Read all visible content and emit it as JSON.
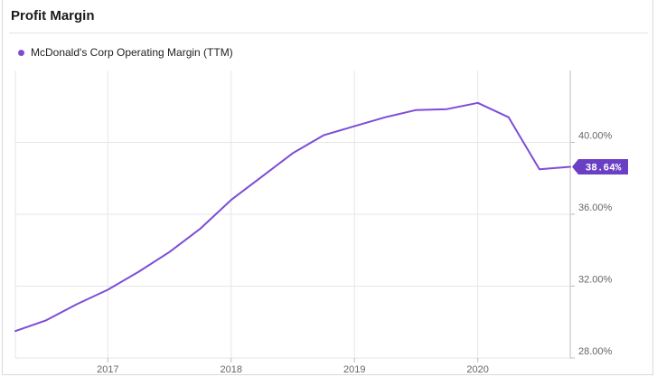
{
  "header": {
    "title": "Profit Margin"
  },
  "chart_data": {
    "type": "line",
    "title": "Profit Margin",
    "series": [
      {
        "name": "McDonald's Corp Operating Margin (TTM)",
        "x": [
          2016.25,
          2016.5,
          2016.75,
          2017.0,
          2017.25,
          2017.5,
          2017.75,
          2018.0,
          2018.25,
          2018.5,
          2018.75,
          2019.0,
          2019.25,
          2019.5,
          2019.75,
          2020.0,
          2020.25,
          2020.5,
          2020.75
        ],
        "values": [
          29.5,
          30.1,
          31.0,
          31.8,
          32.8,
          33.9,
          35.2,
          36.8,
          38.1,
          39.4,
          40.4,
          40.9,
          41.4,
          41.8,
          41.85,
          42.2,
          41.4,
          38.5,
          38.64
        ]
      }
    ],
    "current_value_label": "38.64%",
    "x_ticks": [
      "2017",
      "2018",
      "2019",
      "2020"
    ],
    "y_ticks": [
      "40.00%",
      "36.00%",
      "32.00%",
      "28.00%"
    ],
    "y_tick_values": [
      40,
      36,
      32,
      28
    ],
    "x_tick_values": [
      2017,
      2018,
      2019,
      2020
    ],
    "xlim": [
      2016.25,
      2020.75
    ],
    "ylim": [
      28,
      44
    ],
    "grid": true,
    "legend": "top-left",
    "colors": {
      "line": "#7d4dd6",
      "marker": "#6a3fc4",
      "grid": "#e6e6e6",
      "axis": "#bdbdbd"
    }
  }
}
